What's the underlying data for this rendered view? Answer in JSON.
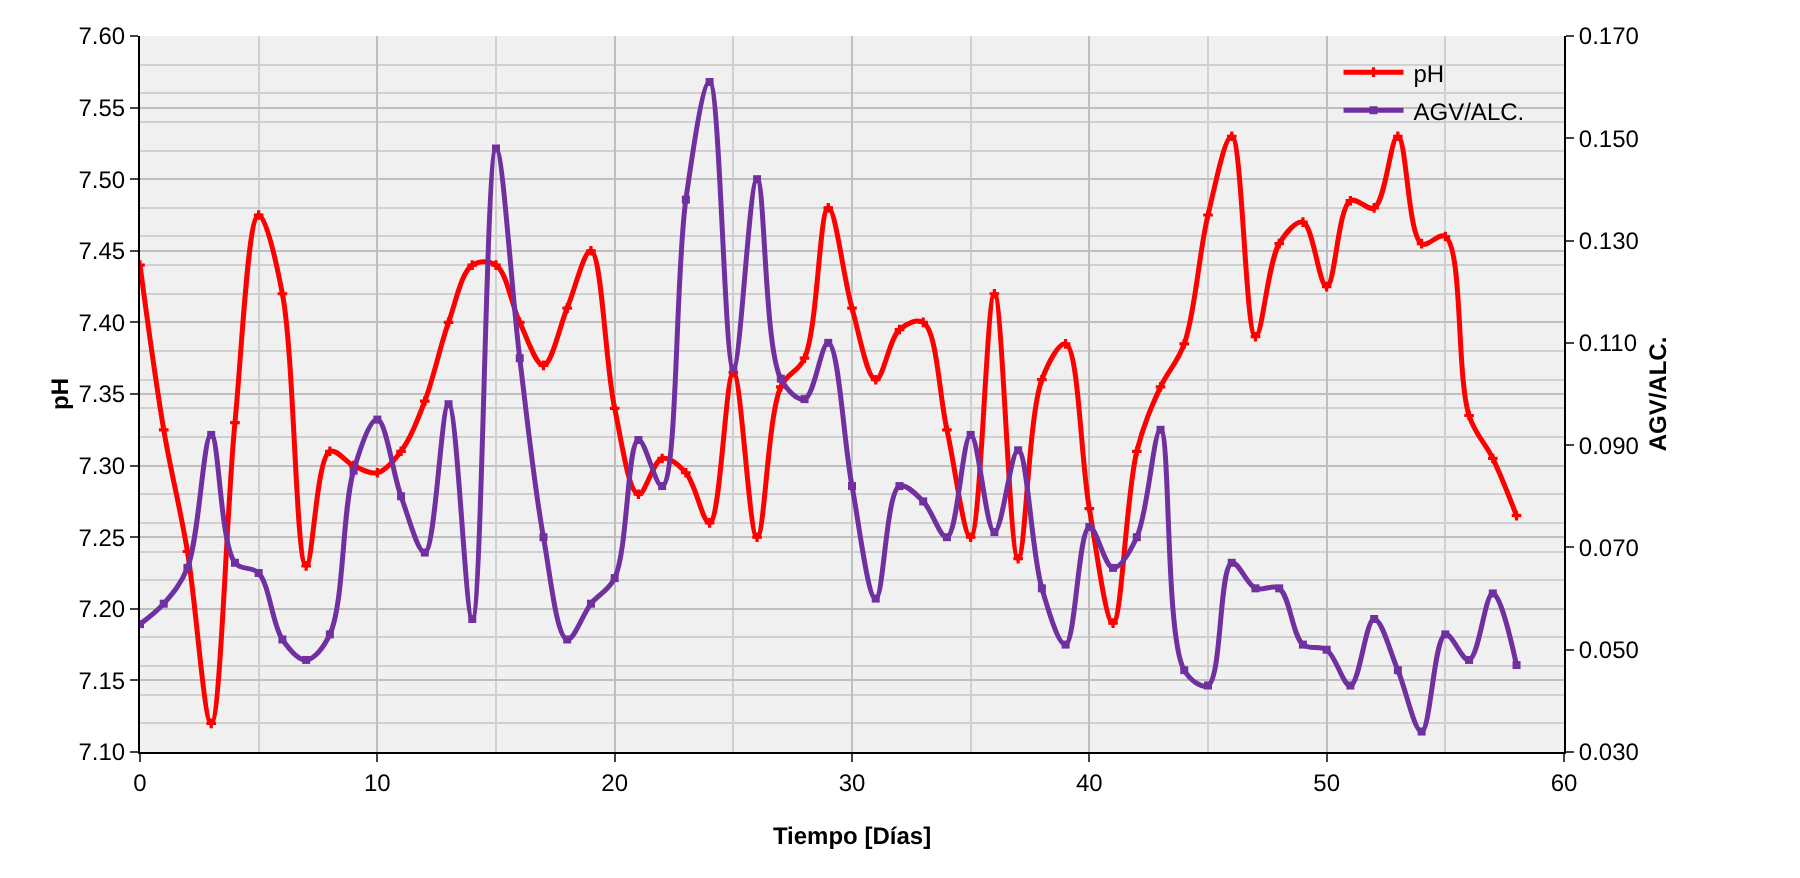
{
  "chart_data": {
    "type": "line",
    "xlabel": "Tiempo [Días]",
    "ylabel": "pH",
    "y2label": "AGV/ALC.",
    "x": [
      0,
      1,
      2,
      3,
      4,
      5,
      6,
      7,
      8,
      9,
      10,
      11,
      12,
      13,
      14,
      15,
      16,
      17,
      18,
      19,
      20,
      21,
      22,
      23,
      24,
      25,
      26,
      27,
      28,
      29,
      30,
      31,
      32,
      33,
      34,
      35,
      36,
      37,
      38,
      39,
      40,
      41,
      42,
      43,
      44,
      45,
      46,
      47,
      48,
      49,
      50,
      51,
      52,
      53,
      54,
      55,
      56,
      57,
      58
    ],
    "series": [
      {
        "name": "pH",
        "color": "#ff0000",
        "marker": "cross",
        "values": [
          7.44,
          7.325,
          7.24,
          7.12,
          7.33,
          7.475,
          7.42,
          7.23,
          7.31,
          7.3,
          7.295,
          7.31,
          7.345,
          7.4,
          7.44,
          7.44,
          7.4,
          7.37,
          7.41,
          7.45,
          7.34,
          7.28,
          7.305,
          7.295,
          7.26,
          7.365,
          7.25,
          7.355,
          7.375,
          7.48,
          7.41,
          7.36,
          7.395,
          7.4,
          7.325,
          7.25,
          7.42,
          7.235,
          7.36,
          7.385,
          7.27,
          7.19,
          7.31,
          7.355,
          7.385,
          7.475,
          7.53,
          7.39,
          7.455,
          7.47,
          7.425,
          7.485,
          7.48,
          7.53,
          7.455,
          7.46,
          7.335,
          7.305,
          7.265
        ]
      },
      {
        "name": "AGV/ALC.",
        "color": "#7030a0",
        "marker": "square",
        "axis": "y2",
        "values": [
          0.055,
          0.059,
          0.066,
          0.092,
          0.067,
          0.065,
          0.052,
          0.048,
          0.053,
          0.085,
          0.095,
          0.08,
          0.069,
          0.098,
          0.056,
          0.148,
          0.107,
          0.072,
          0.052,
          0.059,
          0.064,
          0.091,
          0.082,
          0.138,
          0.161,
          0.105,
          0.142,
          0.103,
          0.099,
          0.11,
          0.082,
          0.06,
          0.082,
          0.079,
          0.072,
          0.092,
          0.073,
          0.089,
          0.062,
          0.051,
          0.074,
          0.066,
          0.072,
          0.093,
          0.046,
          0.043,
          0.067,
          0.062,
          0.062,
          0.051,
          0.05,
          0.043,
          0.056,
          0.046,
          0.034,
          0.053,
          0.048,
          0.061,
          0.047
        ]
      }
    ],
    "xlim": [
      0,
      60
    ],
    "xticks": [
      0,
      10,
      20,
      30,
      40,
      50,
      60
    ],
    "ylim": [
      7.1,
      7.6
    ],
    "yticks": [
      {
        "value": 7.1,
        "label": "7.10"
      },
      {
        "value": 7.15,
        "label": "7.15"
      },
      {
        "value": 7.2,
        "label": "7.20"
      },
      {
        "value": 7.25,
        "label": "7.25"
      },
      {
        "value": 7.3,
        "label": "7.30"
      },
      {
        "value": 7.35,
        "label": "7.35"
      },
      {
        "value": 7.4,
        "label": "7.40"
      },
      {
        "value": 7.45,
        "label": "7.45"
      },
      {
        "value": 7.5,
        "label": "7.50"
      },
      {
        "value": 7.55,
        "label": "7.55"
      },
      {
        "value": 7.6,
        "label": "7.60"
      }
    ],
    "y2lim": [
      0.03,
      0.17
    ],
    "y2ticks": [
      {
        "value": 0.03,
        "label": "0.030"
      },
      {
        "value": 0.05,
        "label": "0.050"
      },
      {
        "value": 0.07,
        "label": "0.070"
      },
      {
        "value": 0.09,
        "label": "0.090"
      },
      {
        "value": 0.11,
        "label": "0.110"
      },
      {
        "value": 0.13,
        "label": "0.130"
      },
      {
        "value": 0.15,
        "label": "0.150"
      },
      {
        "value": 0.17,
        "label": "0.170"
      }
    ],
    "grid": true,
    "legend": "top right"
  }
}
